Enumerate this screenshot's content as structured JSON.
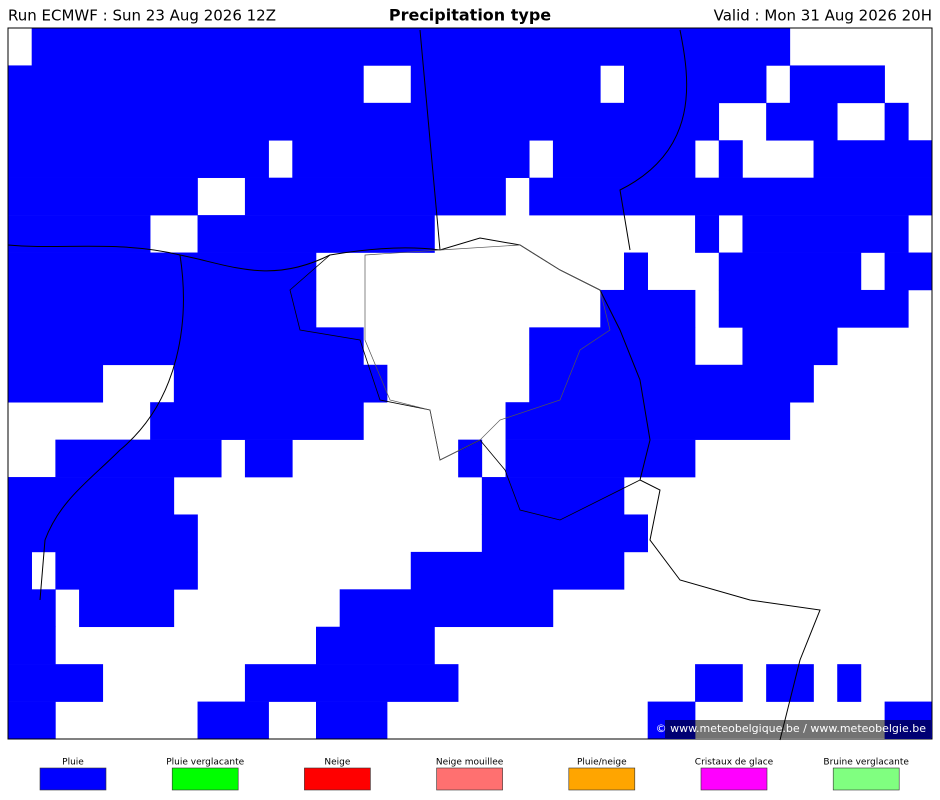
{
  "header": {
    "run": "Run ECMWF : Sun 23 Aug 2026 12Z",
    "title": "Precipitation type",
    "valid": "Valid : Mon 31 Aug 2026 20H"
  },
  "copyright": "© www.meteobelgique.be / www.meteobelgie.be",
  "legend": [
    {
      "label": "Pluie",
      "color": "#0000ff"
    },
    {
      "label": "Pluie verglacante",
      "color": "#00ff00"
    },
    {
      "label": "Neige",
      "color": "#ff0000"
    },
    {
      "label": "Neige mouillee",
      "color": "#ff7070"
    },
    {
      "label": "Pluie/neige",
      "color": "#ffa500"
    },
    {
      "label": "Cristaux de glace",
      "color": "#ff00ff"
    },
    {
      "label": "Bruine verglacante",
      "color": "#80ff80"
    }
  ]
}
